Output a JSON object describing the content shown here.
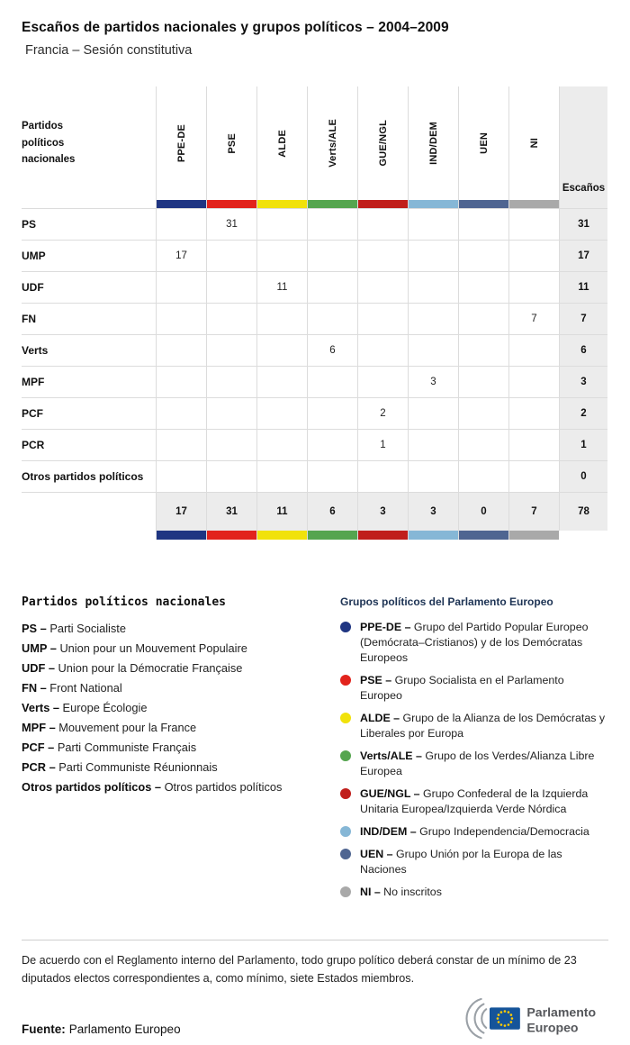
{
  "header": {
    "title": "Escaños de partidos nacionales y grupos políticos – 2004–2009",
    "subtitle": "Francia – Sesión constitutiva"
  },
  "table": {
    "corner_label": "Partidos políticos nacionales",
    "seats_label": "Escaños",
    "groups": [
      {
        "id": "ppe-de",
        "label": "PPE-DE",
        "color": "#1f3582"
      },
      {
        "id": "pse",
        "label": "PSE",
        "color": "#e2231c"
      },
      {
        "id": "alde",
        "label": "ALDE",
        "color": "#f1e20b"
      },
      {
        "id": "verts-ale",
        "label": "Verts/ALE",
        "color": "#55a54f"
      },
      {
        "id": "gue-ngl",
        "label": "GUE/NGL",
        "color": "#c01e1b"
      },
      {
        "id": "ind-dem",
        "label": "IND/DEM",
        "color": "#86b7d6"
      },
      {
        "id": "uen",
        "label": "UEN",
        "color": "#4f6591"
      },
      {
        "id": "ni",
        "label": "NI",
        "color": "#a9a9a9"
      }
    ],
    "rows": [
      {
        "party": "PS",
        "values": [
          null,
          31,
          null,
          null,
          null,
          null,
          null,
          null
        ],
        "seats": 31
      },
      {
        "party": "UMP",
        "values": [
          17,
          null,
          null,
          null,
          null,
          null,
          null,
          null
        ],
        "seats": 17
      },
      {
        "party": "UDF",
        "values": [
          null,
          null,
          11,
          null,
          null,
          null,
          null,
          null
        ],
        "seats": 11
      },
      {
        "party": "FN",
        "values": [
          null,
          null,
          null,
          null,
          null,
          null,
          null,
          7
        ],
        "seats": 7
      },
      {
        "party": "Verts",
        "values": [
          null,
          null,
          null,
          6,
          null,
          null,
          null,
          null
        ],
        "seats": 6
      },
      {
        "party": "MPF",
        "values": [
          null,
          null,
          null,
          null,
          null,
          3,
          null,
          null
        ],
        "seats": 3
      },
      {
        "party": "PCF",
        "values": [
          null,
          null,
          null,
          null,
          2,
          null,
          null,
          null
        ],
        "seats": 2
      },
      {
        "party": "PCR",
        "values": [
          null,
          null,
          null,
          null,
          1,
          null,
          null,
          null
        ],
        "seats": 1
      },
      {
        "party": "Otros partidos políticos",
        "values": [
          null,
          null,
          null,
          null,
          null,
          null,
          null,
          null
        ],
        "seats": 0
      }
    ],
    "totals": {
      "values": [
        17,
        31,
        11,
        6,
        3,
        3,
        0,
        7
      ],
      "seats": 78
    }
  },
  "chart_data": {
    "type": "table",
    "title": "Escaños de partidos nacionales y grupos políticos – 2004–2009",
    "subtitle": "Francia – Sesión constitutiva",
    "columns": [
      "PPE-DE",
      "PSE",
      "ALDE",
      "Verts/ALE",
      "GUE/NGL",
      "IND/DEM",
      "UEN",
      "NI",
      "Escaños"
    ],
    "rows": [
      {
        "party": "PS",
        "group": "PSE",
        "seats": 31
      },
      {
        "party": "UMP",
        "group": "PPE-DE",
        "seats": 17
      },
      {
        "party": "UDF",
        "group": "ALDE",
        "seats": 11
      },
      {
        "party": "FN",
        "group": "NI",
        "seats": 7
      },
      {
        "party": "Verts",
        "group": "Verts/ALE",
        "seats": 6
      },
      {
        "party": "MPF",
        "group": "IND/DEM",
        "seats": 3
      },
      {
        "party": "PCF",
        "group": "GUE/NGL",
        "seats": 2
      },
      {
        "party": "PCR",
        "group": "GUE/NGL",
        "seats": 1
      },
      {
        "party": "Otros partidos políticos",
        "group": null,
        "seats": 0
      }
    ],
    "group_totals": {
      "PPE-DE": 17,
      "PSE": 31,
      "ALDE": 11,
      "Verts/ALE": 6,
      "GUE/NGL": 3,
      "IND/DEM": 3,
      "UEN": 0,
      "NI": 7
    },
    "total_seats": 78
  },
  "legend_parties": {
    "title": "Partidos políticos nacionales",
    "items": [
      {
        "abbr": "PS –",
        "name": "Parti Socialiste"
      },
      {
        "abbr": "UMP –",
        "name": "Union pour un Mouvement Populaire"
      },
      {
        "abbr": "UDF –",
        "name": "Union pour la Démocratie Française"
      },
      {
        "abbr": "FN –",
        "name": "Front National"
      },
      {
        "abbr": "Verts –",
        "name": "Europe Écologie"
      },
      {
        "abbr": "MPF –",
        "name": "Mouvement pour la France"
      },
      {
        "abbr": "PCF –",
        "name": "Parti Communiste Français"
      },
      {
        "abbr": "PCR –",
        "name": "Parti Communiste Réunionnais"
      },
      {
        "abbr": "Otros partidos políticos –",
        "name": "Otros partidos políticos"
      }
    ]
  },
  "legend_groups": {
    "title": "Grupos políticos del Parlamento Europeo",
    "items": [
      {
        "abbr": "PPE-DE –",
        "name": "Grupo del Partido Popular Europeo (Demócrata–Cristianos) y de los Demócratas Europeos",
        "color": "#1f3582"
      },
      {
        "abbr": "PSE –",
        "name": "Grupo Socialista en el Parlamento Europeo",
        "color": "#e2231c"
      },
      {
        "abbr": "ALDE –",
        "name": "Grupo de la Alianza de los Demócratas y Liberales por Europa",
        "color": "#f1e20b"
      },
      {
        "abbr": "Verts/ALE –",
        "name": "Grupo de los Verdes/Alianza Libre Europea",
        "color": "#55a54f"
      },
      {
        "abbr": "GUE/NGL –",
        "name": "Grupo Confederal de la Izquierda Unitaria Europea/Izquierda Verde Nórdica",
        "color": "#c01e1b"
      },
      {
        "abbr": "IND/DEM –",
        "name": "Grupo Independencia/Democracia",
        "color": "#86b7d6"
      },
      {
        "abbr": "UEN –",
        "name": "Grupo Unión por la Europa de las Naciones",
        "color": "#4f6591"
      },
      {
        "abbr": "NI –",
        "name": "No inscritos",
        "color": "#a9a9a9"
      }
    ]
  },
  "footnote": "De acuerdo con el Reglamento interno del Parlamento, todo grupo político deberá constar de un mínimo de 23 diputados electos correspondientes a, como mínimo, siete Estados miembros.",
  "source": {
    "label": "Fuente:",
    "text": "Parlamento Europeo"
  },
  "logo": {
    "line1": "Parlamento",
    "line2": "Europeo"
  }
}
